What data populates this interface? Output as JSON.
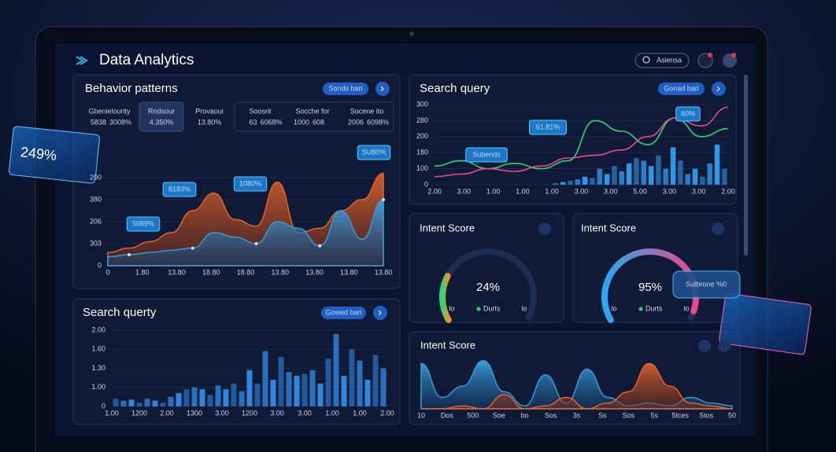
{
  "header": {
    "title": "Data Analytics",
    "search": "Asiensa"
  },
  "behavior": {
    "title": "Behavior patterns",
    "button": "Sonds bari",
    "stats": [
      {
        "label": "Gbenielourity",
        "value": "5838",
        "change": "3008%",
        "change_color": "#2ed47a"
      },
      {
        "label": "Rndsour",
        "value": "4.350%"
      },
      {
        "label": "Provaoui",
        "value": "13.80%"
      },
      {
        "label": "Soosrit",
        "value": "63",
        "change": "6068%",
        "change_color": "#f0465a"
      },
      {
        "label": "Socche for",
        "value": "1000",
        "change": "608",
        "change_color": "#f0465a"
      },
      {
        "label": "Socene ito",
        "value": "2006",
        "change": "6098%",
        "change_color": "#2ed47a"
      }
    ],
    "callouts": [
      "5089%",
      "8183%",
      "1080%",
      "SU80%"
    ],
    "ylim": [
      0,
      500
    ],
    "yticks": [
      0,
      {
        "value": 100,
        "label": "303"
      },
      {
        "value": 200,
        "label": "206"
      },
      {
        "value": 300,
        "label": "380"
      },
      {
        "value": 400,
        "label": "200"
      }
    ],
    "xticks": [
      "0",
      "1.80",
      "13.80",
      "18.80",
      "18.80",
      "13.80",
      "13.80",
      "13.80",
      "13.80"
    ],
    "series": [
      {
        "color": "#e0662c",
        "values": [
          60,
          80,
          110,
          150,
          250,
          330,
          210,
          180,
          380,
          150,
          170,
          250,
          300,
          420
        ]
      },
      {
        "color": "#3a9ad9",
        "values": [
          40,
          50,
          60,
          70,
          80,
          150,
          130,
          100,
          200,
          170,
          90,
          250,
          120,
          300
        ]
      }
    ]
  },
  "search_bars": {
    "title": "Search querty",
    "button": "Gowed bari",
    "color": "#2f86e0",
    "ylim": [
      0,
      400
    ],
    "yticks": [
      0,
      {
        "value": 100,
        "label": "1.00"
      },
      {
        "value": 200,
        "label": "1.30"
      },
      {
        "value": 300,
        "label": "1.60"
      },
      {
        "value": 400,
        "label": "2.00"
      }
    ],
    "xticks": [
      "1.00",
      "1200",
      "2.00",
      "1300",
      "3.00",
      "1200",
      "3.00",
      "3.00",
      "1.00",
      "1.00",
      "2.00"
    ],
    "values": [
      40,
      30,
      35,
      20,
      40,
      30,
      20,
      50,
      70,
      90,
      100,
      90,
      60,
      110,
      90,
      120,
      80,
      190,
      120,
      290,
      140,
      260,
      180,
      160,
      170,
      190,
      120,
      250,
      380,
      160,
      300,
      240,
      140,
      270,
      200
    ]
  },
  "search_query": {
    "title": "Search query",
    "button": "Gonad bari",
    "callouts": [
      "61.81%",
      "Subends",
      "60%"
    ],
    "ylim": [
      0,
      300
    ],
    "yticks": [
      0,
      {
        "value": 60,
        "label": "100"
      },
      {
        "value": 120,
        "label": "180"
      },
      {
        "value": 180,
        "label": "200"
      },
      {
        "value": 240,
        "label": "280"
      },
      {
        "value": 300,
        "label": "300"
      }
    ],
    "xticks": [
      "2.00",
      "3.00",
      "1.00",
      "1.00",
      "1.00",
      "3.00",
      "3.00",
      "5.00",
      "3.00",
      "3.00",
      "2.00"
    ],
    "bar_color": "#2f96e8",
    "bars": [
      0,
      0,
      0,
      0,
      0,
      0,
      0,
      0,
      0,
      0,
      0,
      0,
      0,
      0,
      0,
      0,
      5,
      10,
      15,
      20,
      30,
      25,
      60,
      40,
      70,
      50,
      80,
      100,
      90,
      70,
      110,
      60,
      140,
      90,
      40,
      60,
      30,
      80,
      150,
      60
    ],
    "series": [
      {
        "color": "#2ed47a",
        "values": [
          70,
          90,
          60,
          80,
          60,
          90,
          240,
          200,
          150,
          250,
          180,
          210
        ]
      },
      {
        "color": "#f0468c",
        "values": [
          30,
          40,
          60,
          50,
          70,
          100,
          110,
          130,
          180,
          250,
          220,
          290
        ]
      }
    ]
  },
  "intent_gauges": [
    {
      "title": "Intent Score",
      "value": 24,
      "value_label": "24%",
      "min_label": "lo",
      "max_label": "lo",
      "legend": "Durts"
    },
    {
      "title": "Intent Score",
      "value": 95,
      "value_label": "95%",
      "min_label": "lo",
      "max_label": "lo",
      "legend": "Durts"
    }
  ],
  "intent_area": {
    "title": "Intent Score",
    "ylim": [
      0,
      100
    ],
    "xticks": [
      "10",
      "Dos",
      "500",
      "Soe",
      "bo",
      "Sos",
      "3s",
      "Ss",
      "Sos",
      "5s",
      "5tces",
      "Stos",
      "50"
    ],
    "series": [
      {
        "color": "#3a9ad9",
        "values": [
          80,
          20,
          40,
          85,
          30,
          5,
          60,
          10,
          70,
          20,
          5,
          10,
          5,
          20,
          10,
          5
        ]
      },
      {
        "color": "#e0662c",
        "values": [
          0,
          0,
          5,
          0,
          25,
          0,
          5,
          20,
          0,
          10,
          30,
          80,
          40,
          10,
          5,
          0
        ]
      }
    ]
  },
  "floating": {
    "left_value": "249%",
    "tooltip": "Sutbrone %0"
  }
}
